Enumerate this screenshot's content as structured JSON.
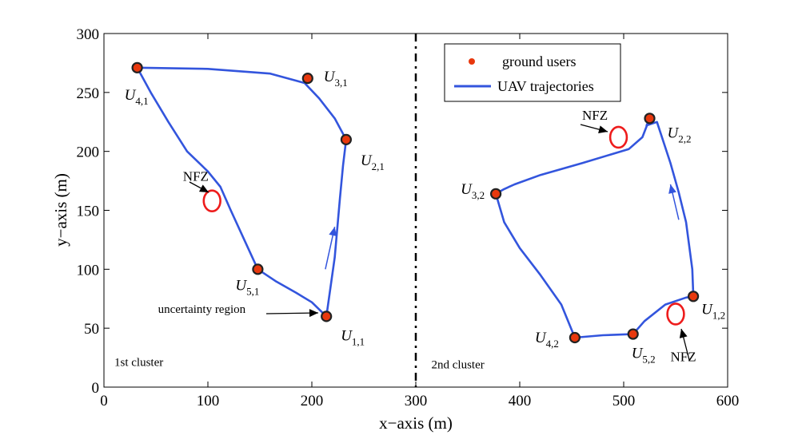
{
  "chart_data": {
    "type": "line",
    "xlabel": "x−axis (m)",
    "ylabel": "y−axis (m)",
    "xlim": [
      0,
      600
    ],
    "ylim": [
      0,
      300
    ],
    "xticks": [
      0,
      100,
      200,
      300,
      400,
      500,
      600
    ],
    "yticks": [
      0,
      50,
      100,
      150,
      200,
      250,
      300
    ],
    "grid": false,
    "legend_position": "top-right",
    "legend": [
      {
        "label": "ground users",
        "marker": "dot",
        "color": "#e8380d"
      },
      {
        "label": "UAV trajectories",
        "marker": "line",
        "color": "#3355dd"
      }
    ],
    "divider_x": 300,
    "series": [
      {
        "name": "1st cluster trajectory",
        "x": [
          214,
          222,
          227,
          230,
          233,
          222,
          207,
          193,
          185,
          160,
          100,
          32,
          45,
          62,
          80,
          100,
          112,
          122,
          135,
          148,
          165,
          185,
          200,
          214
        ],
        "y": [
          60,
          110,
          160,
          188,
          210,
          228,
          245,
          258,
          260,
          266,
          270,
          271,
          250,
          225,
          200,
          183,
          170,
          150,
          125,
          100,
          90,
          80,
          72,
          60
        ]
      },
      {
        "name": "2nd cluster trajectory",
        "x": [
          567,
          566,
          560,
          553,
          545,
          532,
          522,
          525,
          518,
          505,
          460,
          420,
          395,
          385,
          377,
          385,
          400,
          420,
          440,
          453,
          480,
          509,
          520,
          540,
          560,
          567
        ],
        "y": [
          77,
          100,
          140,
          165,
          190,
          225,
          222,
          228,
          212,
          202,
          190,
          180,
          172,
          168,
          164,
          140,
          118,
          95,
          70,
          42,
          44,
          45,
          56,
          70,
          76,
          77
        ]
      }
    ],
    "ground_users": [
      {
        "base": "U",
        "sub": "1,1",
        "x": 214,
        "y": 60
      },
      {
        "base": "U",
        "sub": "2,1",
        "x": 233,
        "y": 210
      },
      {
        "base": "U",
        "sub": "3,1",
        "x": 196,
        "y": 262
      },
      {
        "base": "U",
        "sub": "4,1",
        "x": 32,
        "y": 271
      },
      {
        "base": "U",
        "sub": "5,1",
        "x": 148,
        "y": 100
      },
      {
        "base": "U",
        "sub": "1,2",
        "x": 567,
        "y": 77
      },
      {
        "base": "U",
        "sub": "2,2",
        "x": 525,
        "y": 228
      },
      {
        "base": "U",
        "sub": "3,2",
        "x": 377,
        "y": 164
      },
      {
        "base": "U",
        "sub": "4,2",
        "x": 453,
        "y": 42
      },
      {
        "base": "U",
        "sub": "5,2",
        "x": 509,
        "y": 45
      }
    ],
    "no_fly_zones": [
      {
        "x": 104,
        "y": 158,
        "r": 8
      },
      {
        "x": 495,
        "y": 212,
        "r": 8
      },
      {
        "x": 550,
        "y": 62,
        "r": 8
      }
    ],
    "annotations": [
      {
        "text": "NFZ",
        "x": 76,
        "y": 175
      },
      {
        "text": "NFZ",
        "x": 460,
        "y": 227
      },
      {
        "text": "NFZ",
        "x": 545,
        "y": 22
      },
      {
        "text": "uncertainty region",
        "x": 52,
        "y": 63
      },
      {
        "text": "1st cluster",
        "x": 10,
        "y": 18
      },
      {
        "text": "2nd cluster",
        "x": 315,
        "y": 16
      }
    ],
    "direction_arrows": [
      {
        "from": [
          213,
          100
        ],
        "to": [
          222,
          136
        ]
      },
      {
        "from": [
          553,
          142
        ],
        "to": [
          545,
          172
        ]
      }
    ]
  }
}
